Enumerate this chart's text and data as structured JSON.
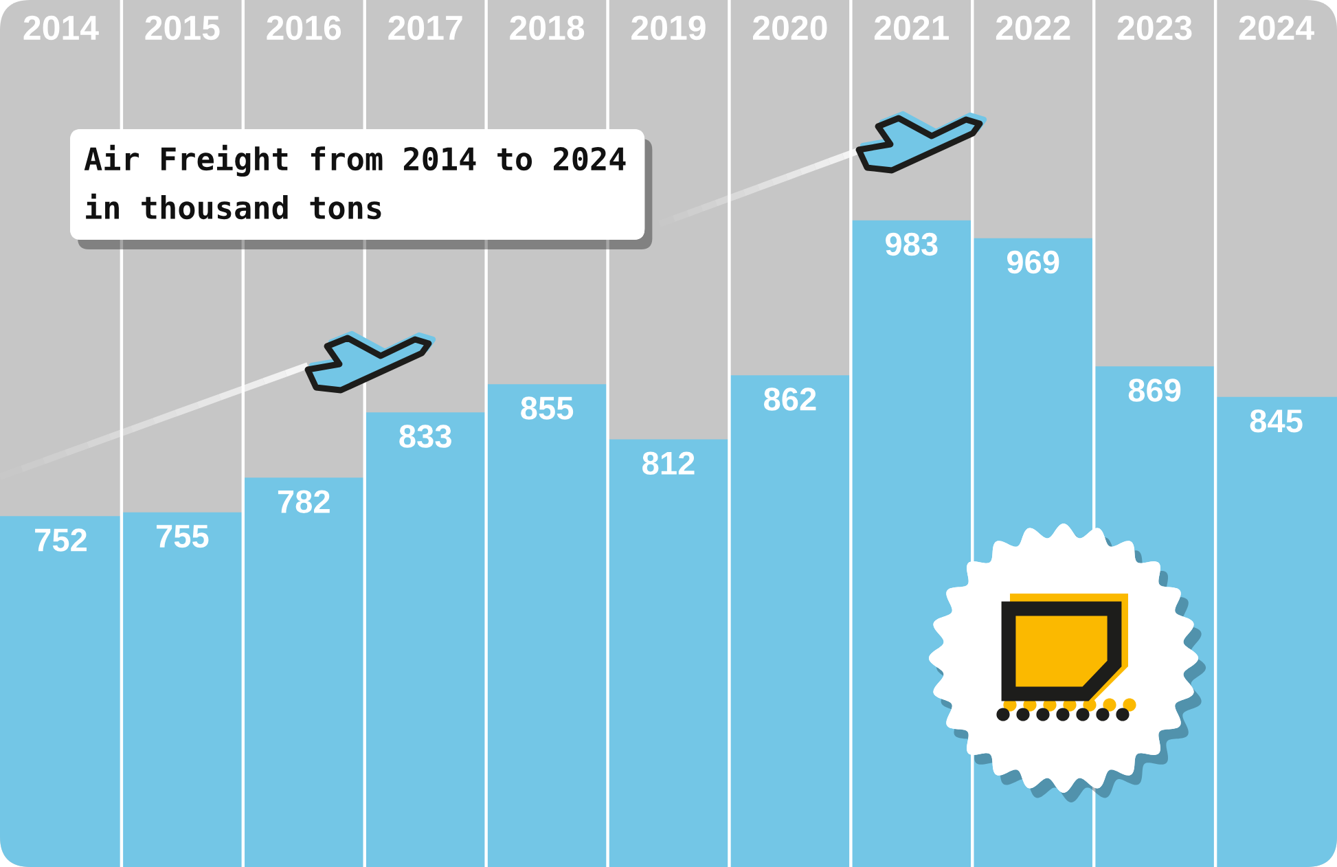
{
  "chart_data": {
    "type": "bar",
    "title": "Air Freight from 2014 to 2024",
    "subtitle": "in thousand tons",
    "categories": [
      "2014",
      "2015",
      "2016",
      "2017",
      "2018",
      "2019",
      "2020",
      "2021",
      "2022",
      "2023",
      "2024"
    ],
    "values": [
      752,
      755,
      782,
      833,
      855,
      812,
      862,
      983,
      969,
      869,
      845
    ],
    "color": "#73c6e6",
    "ylim": [
      478,
      1155
    ],
    "data_labels": true,
    "grid": "x",
    "tick_labels": "x"
  }
}
